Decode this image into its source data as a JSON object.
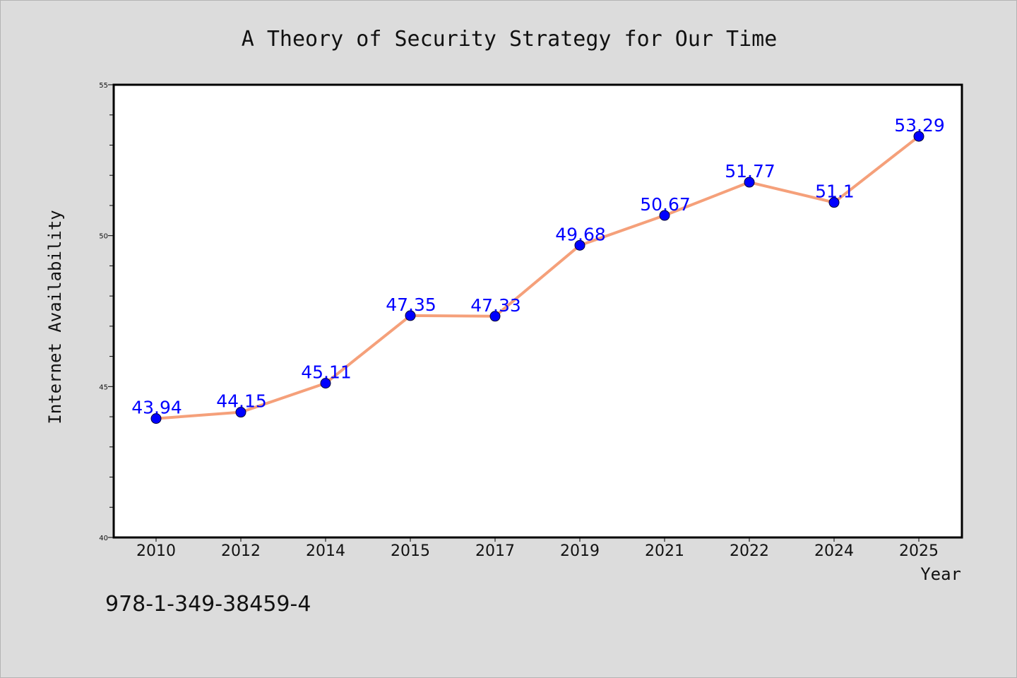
{
  "chart_data": {
    "type": "line",
    "title": "A Theory of Security Strategy for Our Time",
    "xlabel": "Year",
    "ylabel": "Internet Availability",
    "categories": [
      "2010",
      "2012",
      "2014",
      "2015",
      "2017",
      "2019",
      "2021",
      "2022",
      "2024",
      "2025"
    ],
    "series": [
      {
        "values": [
          43.94,
          44.15,
          45.11,
          47.35,
          47.33,
          49.68,
          50.67,
          51.77,
          51.1,
          53.29
        ],
        "labels": [
          "43.94",
          "44.15",
          "45.11",
          "47.35",
          "47.33",
          "49.68",
          "50.67",
          "51.77",
          "51.1",
          "53.29"
        ]
      }
    ],
    "ylim": [
      40,
      55
    ],
    "yticks": [
      40,
      45,
      50,
      55
    ],
    "ytick_labels": [
      "40",
      "45",
      "50",
      "55"
    ],
    "yminor_step": 1,
    "grid": false,
    "line_color": "#f5a07a",
    "marker_color": "#0000ff",
    "label_color": "#0000ff"
  },
  "footer": {
    "isbn": "978-1-349-38459-4"
  }
}
